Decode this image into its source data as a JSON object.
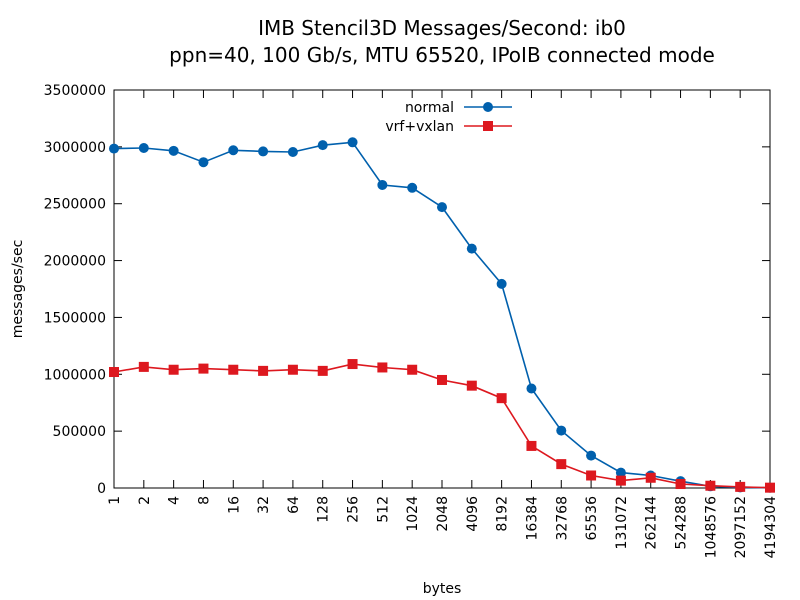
{
  "chart_data": {
    "type": "line",
    "title": [
      "IMB Stencil3D Messages/Second: ib0",
      "ppn=40, 100 Gb/s, MTU 65520, IPoIB connected mode"
    ],
    "xlabel": "bytes",
    "ylabel": "messages/sec",
    "categories": [
      "1",
      "2",
      "4",
      "8",
      "16",
      "32",
      "64",
      "128",
      "256",
      "512",
      "1024",
      "2048",
      "4096",
      "8192",
      "16384",
      "32768",
      "65536",
      "131072",
      "262144",
      "524288",
      "1048576",
      "2097152",
      "4194304"
    ],
    "yticks": [
      "0",
      "500000",
      "1000000",
      "1500000",
      "2000000",
      "2500000",
      "3000000",
      "3500000"
    ],
    "ylim": [
      0,
      3500000
    ],
    "grid": false,
    "legend_position": "top-center",
    "series": [
      {
        "name": "normal",
        "color": "#0060ad",
        "marker": "circle",
        "values": [
          2985000,
          2990000,
          2965000,
          2865000,
          2970000,
          2960000,
          2955000,
          3015000,
          3040000,
          2665000,
          2640000,
          2470000,
          2105000,
          1795000,
          875000,
          505000,
          285000,
          135000,
          110000,
          60000,
          15000,
          5000,
          2000
        ]
      },
      {
        "name": "vrf+vxlan",
        "color": "#dd181f",
        "marker": "square",
        "values": [
          1020000,
          1065000,
          1040000,
          1050000,
          1040000,
          1030000,
          1040000,
          1030000,
          1090000,
          1060000,
          1040000,
          950000,
          900000,
          790000,
          370000,
          210000,
          110000,
          65000,
          90000,
          35000,
          20000,
          10000,
          3000
        ]
      }
    ]
  }
}
